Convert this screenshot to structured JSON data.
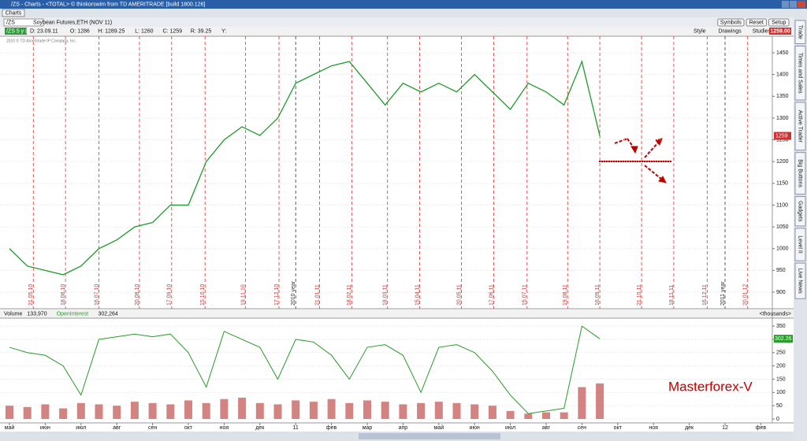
{
  "window": {
    "title": "/ZS - Charts - <TOTAL> © thinkorswim from TD AMERITRADE [build 1800.126]",
    "tab": "Charts"
  },
  "toolbar": {
    "symbol": "/ZS",
    "buttons": [
      "Symbols",
      "Reset",
      "Setup"
    ]
  },
  "chart_toolbar": {
    "items": [
      "Style",
      "Drawings",
      "Studies"
    ],
    "last_price": "1259.00"
  },
  "info": {
    "tag": "/ZS 5 y D",
    "description": "Soybean Futures,ETH (NOV 11)",
    "fields": [
      "D: 23.09.11",
      "O: 1286",
      "H: 1289.25",
      "L: 1260",
      "C: 1259",
      "R: 39.25",
      "Y:"
    ]
  },
  "copyright": "2010 © TD Ameritrade IP Company, Inc.",
  "side_tabs": [
    "Trade",
    "Times and Sales",
    "Active Trader",
    "Big Buttons",
    "Gadgets",
    "Level II",
    "Live News"
  ],
  "annotation": "Masterforex-V",
  "chart_data": [
    {
      "type": "line",
      "categories": [
        "май",
        null,
        "июн",
        null,
        "июл",
        null,
        "авг",
        null,
        "сен",
        null,
        "окт",
        null,
        "ноя",
        null,
        "дек",
        null,
        "11",
        null,
        "фев",
        null,
        "мар",
        null,
        "апр",
        null,
        "май",
        null,
        "июн",
        null,
        "июл",
        null,
        "авг",
        null,
        "сен",
        null,
        "окт",
        null,
        "ноя",
        null,
        "дек",
        null,
        "12",
        null,
        "фев",
        null
      ],
      "series": [
        {
          "name": "/ZS",
          "color": "#1f9a2a",
          "values": [
            1000,
            960,
            950,
            940,
            960,
            1000,
            1020,
            1050,
            1060,
            1100,
            1100,
            1200,
            1250,
            1280,
            1260,
            1300,
            1380,
            1400,
            1420,
            1430,
            1380,
            1330,
            1380,
            1360,
            1380,
            1360,
            1400,
            1360,
            1320,
            1380,
            1360,
            1330,
            1430,
            1259,
            null,
            null,
            null,
            null,
            null,
            null,
            null,
            null,
            null,
            null
          ]
        }
      ],
      "ylim": [
        862,
        1488
      ],
      "yticks": [
        900,
        950,
        1000,
        1050,
        1100,
        1150,
        1200,
        1250,
        1300,
        1350,
        1400,
        1450
      ],
      "grid": true,
      "price_marker": "1259",
      "date_markers": [
        "21.05.10",
        "18.06.10",
        "16.07.10",
        "20.08.10",
        "17.09.10",
        "15.10.10",
        "19.11.10",
        "17.12.10",
        "2010 year",
        "21.01.11",
        "18.02.11",
        "18.03.11",
        "15.04.11",
        "20.05.11",
        "17.06.11",
        "15.07.11",
        "19.08.11",
        "16.09.11",
        "21.10.11",
        "18.11.11",
        "16.12.11",
        "2011 year",
        "20.01.12"
      ]
    },
    {
      "type": "bar",
      "series": [
        {
          "name": "Volume",
          "color": "#c0504d",
          "last_label": "133,970",
          "values": [
            50,
            45,
            55,
            40,
            60,
            55,
            50,
            65,
            60,
            55,
            70,
            60,
            75,
            80,
            60,
            55,
            70,
            65,
            75,
            60,
            70,
            65,
            55,
            60,
            65,
            60,
            55,
            50,
            30,
            20,
            25,
            25,
            120,
            133.97,
            null,
            null,
            null,
            null,
            null,
            null,
            null,
            null,
            null,
            null
          ]
        },
        {
          "name": "OpenInterest",
          "color": "#2a9a2a",
          "last_label": "302,264",
          "values": [
            270,
            250,
            240,
            200,
            90,
            300,
            310,
            320,
            310,
            320,
            250,
            120,
            330,
            300,
            270,
            150,
            300,
            290,
            240,
            150,
            270,
            280,
            240,
            100,
            270,
            280,
            250,
            180,
            90,
            20,
            30,
            40,
            350,
            302.264,
            null,
            null,
            null,
            null,
            null,
            null,
            null,
            null,
            null,
            null
          ]
        }
      ],
      "ylim": [
        0,
        380
      ],
      "yticks": [
        0,
        50,
        100,
        150,
        200,
        250,
        300,
        350
      ],
      "grid": true,
      "unit_label": "<thousands>",
      "last_marker": "302.26"
    }
  ]
}
